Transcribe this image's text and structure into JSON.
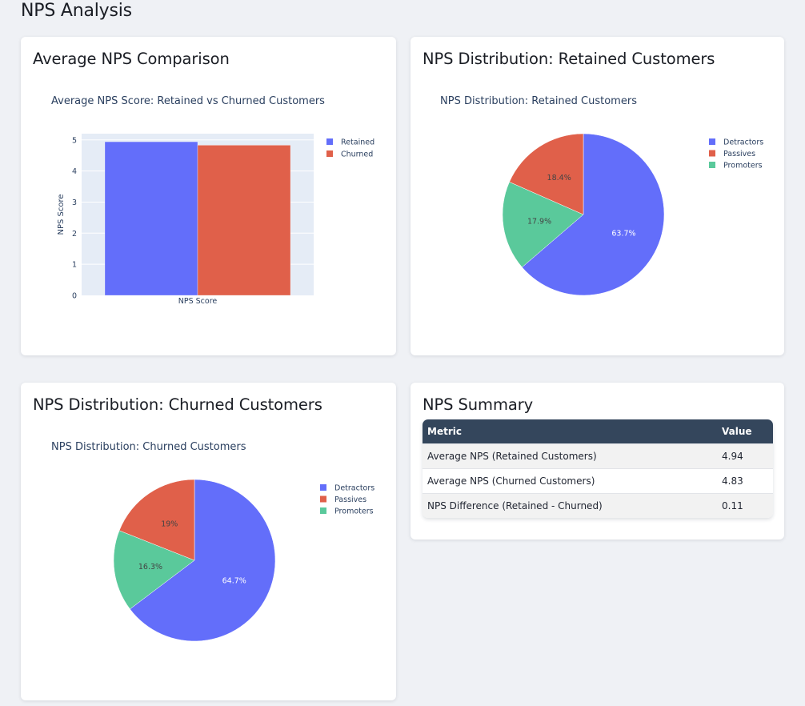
{
  "page": {
    "title": "NPS Analysis"
  },
  "colors": {
    "retained": "#636efa",
    "churned": "#ef553b",
    "detractors": "#636efa",
    "passives": "#ef553b",
    "promoters": "#00cc96",
    "plot_bg": "#e5ecf6",
    "table_header_bg": "#34465c"
  },
  "cards": {
    "bar": {
      "heading": "Average NPS Comparison"
    },
    "pie_retained": {
      "heading": "NPS Distribution: Retained Customers"
    },
    "pie_churned": {
      "heading": "NPS Distribution: Churned Customers"
    },
    "summary": {
      "heading": "NPS Summary"
    }
  },
  "chart_data": [
    {
      "type": "bar",
      "title": "Average NPS Score: Retained vs Churned Customers",
      "categories": [
        "NPS Score"
      ],
      "series": [
        {
          "name": "Retained",
          "values": [
            4.94
          ],
          "color": "#636efa"
        },
        {
          "name": "Churned",
          "values": [
            4.83
          ],
          "color": "#e0604a"
        }
      ],
      "xlabel": "",
      "ylabel": "NPS Score",
      "ylim": [
        0,
        5.2
      ],
      "yticks": [
        0,
        1,
        2,
        3,
        4,
        5
      ],
      "grid": true,
      "legend": "top-right",
      "barmode": "group"
    },
    {
      "type": "pie",
      "title": "NPS Distribution: Retained Customers",
      "labels": [
        "Detractors",
        "Promoters",
        "Passives"
      ],
      "values": [
        63.7,
        17.9,
        18.4
      ],
      "text_labels": [
        "63.7%",
        "17.9%",
        "18.4%"
      ],
      "colors": [
        "#636efa",
        "#5ac99b",
        "#e0604a"
      ],
      "legend_order": [
        "Detractors",
        "Passives",
        "Promoters"
      ],
      "legend": "top-right"
    },
    {
      "type": "pie",
      "title": "NPS Distribution: Churned Customers",
      "labels": [
        "Detractors",
        "Promoters",
        "Passives"
      ],
      "values": [
        64.7,
        16.3,
        19.0
      ],
      "text_labels": [
        "64.7%",
        "16.3%",
        "19%"
      ],
      "colors": [
        "#636efa",
        "#5ac99b",
        "#e0604a"
      ],
      "legend_order": [
        "Detractors",
        "Passives",
        "Promoters"
      ],
      "legend": "top-right"
    }
  ],
  "summary_table": {
    "headers": [
      "Metric",
      "Value"
    ],
    "rows": [
      [
        "Average NPS (Retained Customers)",
        "4.94"
      ],
      [
        "Average NPS (Churned Customers)",
        "4.83"
      ],
      [
        "NPS Difference (Retained - Churned)",
        "0.11"
      ]
    ]
  }
}
